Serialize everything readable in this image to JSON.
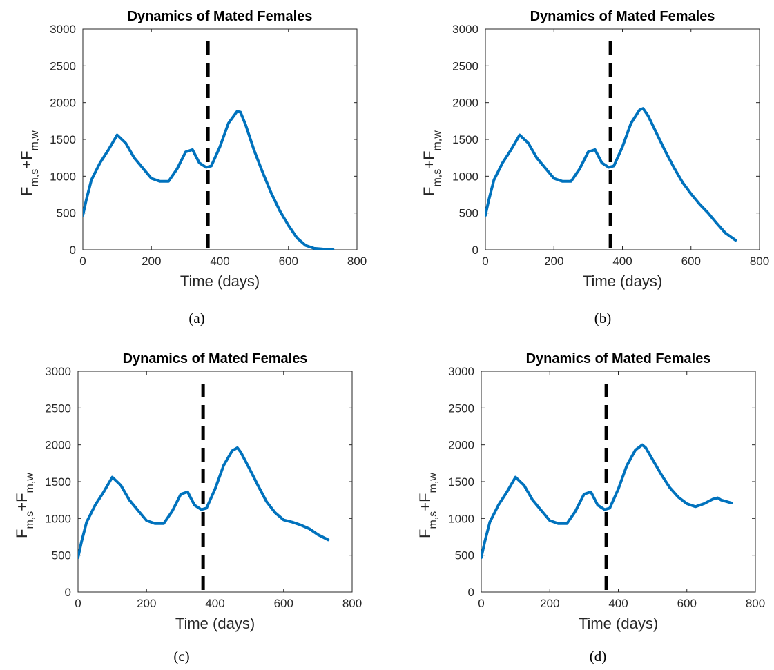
{
  "chart_data": [
    {
      "type": "line",
      "panel": "a",
      "caption": "(a)",
      "title": "Dynamics of Mated Females",
      "xlabel": "Time (days)",
      "ylabel_main": "F",
      "ylabel_sub1": "m,s",
      "ylabel_mid": "+F",
      "ylabel_sub2": "m,w",
      "xlim": [
        0,
        800
      ],
      "ylim": [
        0,
        3000
      ],
      "xticks": [
        0,
        200,
        400,
        600,
        800
      ],
      "yticks": [
        0,
        500,
        1000,
        1500,
        2000,
        2500,
        3000
      ],
      "vline_x": 365,
      "color": "#0072bd",
      "x": [
        0,
        10,
        25,
        50,
        75,
        100,
        125,
        150,
        175,
        200,
        225,
        250,
        275,
        300,
        320,
        340,
        360,
        375,
        400,
        425,
        450,
        460,
        475,
        500,
        525,
        550,
        575,
        600,
        625,
        650,
        675,
        700,
        730
      ],
      "y": [
        470,
        680,
        950,
        1180,
        1360,
        1560,
        1450,
        1250,
        1110,
        970,
        930,
        930,
        1100,
        1330,
        1360,
        1180,
        1120,
        1140,
        1400,
        1720,
        1880,
        1870,
        1700,
        1350,
        1050,
        770,
        530,
        330,
        160,
        60,
        20,
        10,
        5
      ]
    },
    {
      "type": "line",
      "panel": "b",
      "caption": "(b)",
      "title": "Dynamics of Mated Females",
      "xlabel": "Time (days)",
      "ylabel_main": "F",
      "ylabel_sub1": "m,s",
      "ylabel_mid": "+F",
      "ylabel_sub2": "m,w",
      "xlim": [
        0,
        800
      ],
      "ylim": [
        0,
        3000
      ],
      "xticks": [
        0,
        200,
        400,
        600,
        800
      ],
      "yticks": [
        0,
        500,
        1000,
        1500,
        2000,
        2500,
        3000
      ],
      "vline_x": 365,
      "color": "#0072bd",
      "x": [
        0,
        10,
        25,
        50,
        75,
        100,
        125,
        150,
        175,
        200,
        225,
        250,
        275,
        300,
        320,
        340,
        360,
        375,
        400,
        425,
        450,
        460,
        475,
        500,
        525,
        550,
        575,
        600,
        625,
        650,
        675,
        700,
        730
      ],
      "y": [
        470,
        680,
        950,
        1180,
        1360,
        1560,
        1450,
        1250,
        1110,
        970,
        930,
        930,
        1100,
        1330,
        1360,
        1180,
        1120,
        1140,
        1400,
        1720,
        1900,
        1920,
        1820,
        1580,
        1340,
        1120,
        920,
        760,
        620,
        500,
        360,
        230,
        130
      ]
    },
    {
      "type": "line",
      "panel": "c",
      "caption": "(c)",
      "title": "Dynamics of Mated Females",
      "xlabel": "Time (days)",
      "ylabel_main": "F",
      "ylabel_sub1": "m,s",
      "ylabel_mid": "+F",
      "ylabel_sub2": "m,w",
      "xlim": [
        0,
        800
      ],
      "ylim": [
        0,
        3000
      ],
      "xticks": [
        0,
        200,
        400,
        600,
        800
      ],
      "yticks": [
        0,
        500,
        1000,
        1500,
        2000,
        2500,
        3000
      ],
      "vline_x": 365,
      "color": "#0072bd",
      "x": [
        0,
        10,
        25,
        50,
        75,
        100,
        125,
        150,
        175,
        200,
        225,
        250,
        275,
        300,
        320,
        340,
        360,
        375,
        400,
        425,
        450,
        465,
        475,
        500,
        525,
        550,
        575,
        600,
        625,
        650,
        675,
        700,
        730
      ],
      "y": [
        470,
        680,
        950,
        1180,
        1360,
        1560,
        1450,
        1250,
        1110,
        970,
        930,
        930,
        1100,
        1330,
        1360,
        1180,
        1120,
        1140,
        1400,
        1720,
        1920,
        1960,
        1900,
        1680,
        1450,
        1230,
        1080,
        980,
        950,
        910,
        860,
        780,
        710
      ]
    },
    {
      "type": "line",
      "panel": "d",
      "caption": "(d)",
      "title": "Dynamics of Mated Females",
      "xlabel": "Time (days)",
      "ylabel_main": "F",
      "ylabel_sub1": "m,s",
      "ylabel_mid": "+F",
      "ylabel_sub2": "m,w",
      "xlim": [
        0,
        800
      ],
      "ylim": [
        0,
        3000
      ],
      "xticks": [
        0,
        200,
        400,
        600,
        800
      ],
      "yticks": [
        0,
        500,
        1000,
        1500,
        2000,
        2500,
        3000
      ],
      "vline_x": 365,
      "color": "#0072bd",
      "x": [
        0,
        10,
        25,
        50,
        75,
        100,
        125,
        150,
        175,
        200,
        225,
        250,
        275,
        300,
        320,
        340,
        360,
        375,
        400,
        425,
        450,
        470,
        480,
        500,
        525,
        550,
        575,
        600,
        625,
        650,
        675,
        690,
        700,
        730
      ],
      "y": [
        470,
        680,
        950,
        1180,
        1360,
        1560,
        1450,
        1250,
        1110,
        970,
        930,
        930,
        1100,
        1330,
        1360,
        1180,
        1120,
        1140,
        1400,
        1720,
        1930,
        2000,
        1960,
        1800,
        1600,
        1420,
        1290,
        1200,
        1160,
        1200,
        1260,
        1280,
        1250,
        1210
      ]
    }
  ]
}
